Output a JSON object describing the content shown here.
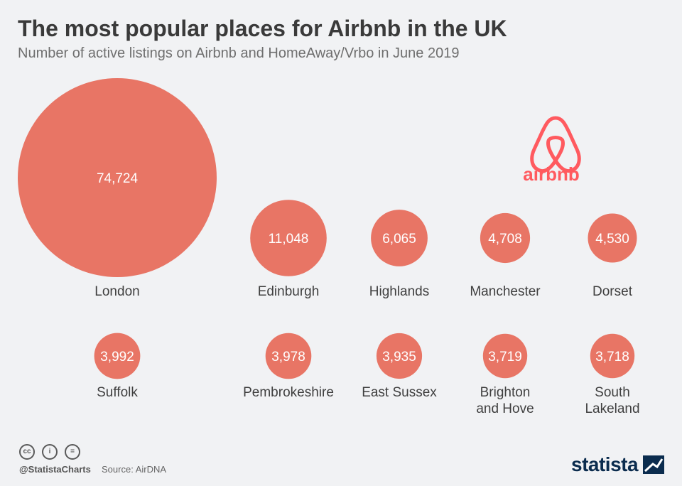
{
  "title": "The most popular places for Airbnb in the UK",
  "subtitle": "Number of active listings on Airbnb and HomeAway/Vrbo in June 2019",
  "logo_text": "airbnb",
  "footer": {
    "handle": "@StatistaCharts",
    "source": "Source: AirDNA",
    "brand": "statista"
  },
  "colors": {
    "bubble": "#e87565",
    "brand": "#ff5a5f"
  },
  "chart_data": {
    "type": "bubble",
    "title": "The most popular places for Airbnb in the UK",
    "unit": "active listings",
    "points": [
      {
        "label": [
          "London"
        ],
        "value": 74724,
        "display": "74,724"
      },
      {
        "label": [
          "Edinburgh"
        ],
        "value": 11048,
        "display": "11,048"
      },
      {
        "label": [
          "Highlands"
        ],
        "value": 6065,
        "display": "6,065"
      },
      {
        "label": [
          "Manchester"
        ],
        "value": 4708,
        "display": "4,708"
      },
      {
        "label": [
          "Dorset"
        ],
        "value": 4530,
        "display": "4,530"
      },
      {
        "label": [
          "Suffolk"
        ],
        "value": 3992,
        "display": "3,992"
      },
      {
        "label": [
          "Pembrokeshire"
        ],
        "value": 3978,
        "display": "3,978"
      },
      {
        "label": [
          "East Sussex"
        ],
        "value": 3935,
        "display": "3,935"
      },
      {
        "label": [
          "Brighton",
          "and Hove"
        ],
        "value": 3719,
        "display": "3,719"
      },
      {
        "label": [
          "South",
          "Lakeland"
        ],
        "value": 3718,
        "display": "3,718"
      }
    ]
  }
}
